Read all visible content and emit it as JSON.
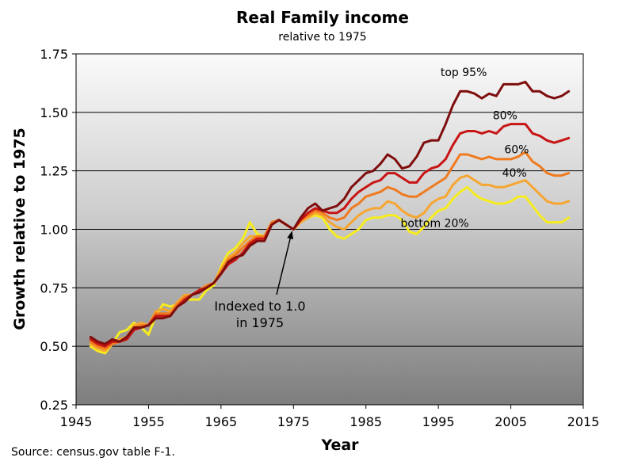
{
  "chart_data": {
    "type": "line",
    "title": "Real Family income",
    "subtitle": "relative to 1975",
    "xlabel": "Year",
    "ylabel": "Growth relative to 1975",
    "xlim": [
      1945,
      2015
    ],
    "ylim": [
      0.25,
      1.75
    ],
    "x_ticks": [
      "1945",
      "1955",
      "1965",
      "1975",
      "1985",
      "1995",
      "2005",
      "2015"
    ],
    "y_ticks": [
      "0.25",
      "0.50",
      "0.75",
      "1.00",
      "1.25",
      "1.50",
      "1.75"
    ],
    "grid": "horizontal",
    "source": "Source: census.gov table F-1.",
    "annotation": {
      "lines": [
        "Indexed to 1.0",
        "in 1975"
      ],
      "x": 1975,
      "y": 1.0
    },
    "x": [
      1947,
      1948,
      1949,
      1950,
      1951,
      1952,
      1953,
      1954,
      1955,
      1956,
      1957,
      1958,
      1959,
      1960,
      1961,
      1962,
      1963,
      1964,
      1965,
      1966,
      1967,
      1968,
      1969,
      1970,
      1971,
      1972,
      1973,
      1974,
      1975,
      1976,
      1977,
      1978,
      1979,
      1980,
      1981,
      1982,
      1983,
      1984,
      1985,
      1986,
      1987,
      1988,
      1989,
      1990,
      1991,
      1992,
      1993,
      1994,
      1995,
      1996,
      1997,
      1998,
      1999,
      2000,
      2001,
      2002,
      2003,
      2004,
      2005,
      2006,
      2007,
      2008,
      2009,
      2010,
      2011,
      2012,
      2013
    ],
    "series": [
      {
        "name": "top 95%",
        "color": "#7f0d0d",
        "label_x": 1998.5,
        "label_y": 1.655,
        "values": [
          0.54,
          0.52,
          0.51,
          0.53,
          0.52,
          0.54,
          0.58,
          0.58,
          0.59,
          0.62,
          0.62,
          0.63,
          0.67,
          0.69,
          0.72,
          0.73,
          0.75,
          0.77,
          0.81,
          0.86,
          0.88,
          0.89,
          0.93,
          0.95,
          0.95,
          1.02,
          1.04,
          1.02,
          1.0,
          1.05,
          1.09,
          1.11,
          1.08,
          1.09,
          1.1,
          1.13,
          1.18,
          1.21,
          1.24,
          1.25,
          1.28,
          1.32,
          1.3,
          1.26,
          1.27,
          1.31,
          1.37,
          1.38,
          1.38,
          1.45,
          1.53,
          1.59,
          1.59,
          1.58,
          1.56,
          1.58,
          1.57,
          1.62,
          1.62,
          1.62,
          1.63,
          1.59,
          1.59,
          1.57,
          1.56,
          1.57,
          1.59
        ]
      },
      {
        "name": "80%",
        "color": "#c81414",
        "label_x": 2004.2,
        "label_y": 1.47,
        "values": [
          0.53,
          0.51,
          0.5,
          0.52,
          0.52,
          0.53,
          0.57,
          0.58,
          0.59,
          0.63,
          0.63,
          0.63,
          0.67,
          0.7,
          0.72,
          0.74,
          0.75,
          0.77,
          0.81,
          0.85,
          0.87,
          0.9,
          0.94,
          0.96,
          0.96,
          1.02,
          1.04,
          1.02,
          1.0,
          1.04,
          1.07,
          1.09,
          1.08,
          1.07,
          1.07,
          1.09,
          1.13,
          1.16,
          1.18,
          1.2,
          1.21,
          1.24,
          1.24,
          1.22,
          1.2,
          1.2,
          1.24,
          1.26,
          1.27,
          1.3,
          1.36,
          1.41,
          1.42,
          1.42,
          1.41,
          1.42,
          1.41,
          1.44,
          1.45,
          1.45,
          1.45,
          1.41,
          1.4,
          1.38,
          1.37,
          1.38,
          1.39
        ]
      },
      {
        "name": "60%",
        "color": "#f07a1e",
        "label_x": 2005.8,
        "label_y": 1.325,
        "values": [
          0.52,
          0.5,
          0.49,
          0.51,
          0.52,
          0.53,
          0.58,
          0.59,
          0.59,
          0.64,
          0.64,
          0.64,
          0.68,
          0.71,
          0.72,
          0.74,
          0.76,
          0.77,
          0.82,
          0.87,
          0.89,
          0.92,
          0.95,
          0.97,
          0.97,
          1.03,
          1.04,
          1.02,
          1.0,
          1.04,
          1.06,
          1.08,
          1.07,
          1.05,
          1.04,
          1.05,
          1.09,
          1.11,
          1.14,
          1.15,
          1.16,
          1.18,
          1.17,
          1.15,
          1.14,
          1.14,
          1.16,
          1.18,
          1.2,
          1.22,
          1.27,
          1.32,
          1.32,
          1.31,
          1.3,
          1.31,
          1.3,
          1.3,
          1.3,
          1.31,
          1.33,
          1.29,
          1.27,
          1.24,
          1.23,
          1.23,
          1.24
        ]
      },
      {
        "name": "40%",
        "color": "#f6a630",
        "label_x": 2005.5,
        "label_y": 1.225,
        "values": [
          0.51,
          0.49,
          0.48,
          0.51,
          0.53,
          0.54,
          0.59,
          0.6,
          0.59,
          0.65,
          0.66,
          0.65,
          0.69,
          0.72,
          0.72,
          0.74,
          0.76,
          0.77,
          0.83,
          0.88,
          0.9,
          0.94,
          0.97,
          0.97,
          0.97,
          1.03,
          1.04,
          1.02,
          1.0,
          1.03,
          1.05,
          1.07,
          1.06,
          1.03,
          1.01,
          1.0,
          1.03,
          1.06,
          1.08,
          1.09,
          1.09,
          1.12,
          1.11,
          1.08,
          1.06,
          1.05,
          1.07,
          1.11,
          1.13,
          1.14,
          1.19,
          1.22,
          1.23,
          1.21,
          1.19,
          1.19,
          1.18,
          1.18,
          1.19,
          1.2,
          1.21,
          1.18,
          1.15,
          1.12,
          1.11,
          1.11,
          1.12
        ]
      },
      {
        "name": "bottom 20%",
        "color": "#f6ec1e",
        "label_x": 1994.5,
        "label_y": 1.01,
        "values": [
          0.5,
          0.48,
          0.47,
          0.51,
          0.56,
          0.57,
          0.6,
          0.58,
          0.55,
          0.63,
          0.68,
          0.67,
          0.68,
          0.7,
          0.7,
          0.7,
          0.74,
          0.76,
          0.84,
          0.9,
          0.92,
          0.96,
          1.03,
          0.98,
          0.97,
          1.02,
          1.04,
          1.02,
          1.0,
          1.03,
          1.05,
          1.06,
          1.05,
          1.0,
          0.97,
          0.96,
          0.98,
          1.0,
          1.04,
          1.05,
          1.05,
          1.06,
          1.06,
          1.04,
          0.99,
          0.98,
          1.01,
          1.05,
          1.08,
          1.09,
          1.13,
          1.16,
          1.18,
          1.15,
          1.13,
          1.12,
          1.11,
          1.11,
          1.12,
          1.14,
          1.14,
          1.1,
          1.06,
          1.03,
          1.03,
          1.03,
          1.05
        ]
      }
    ]
  }
}
